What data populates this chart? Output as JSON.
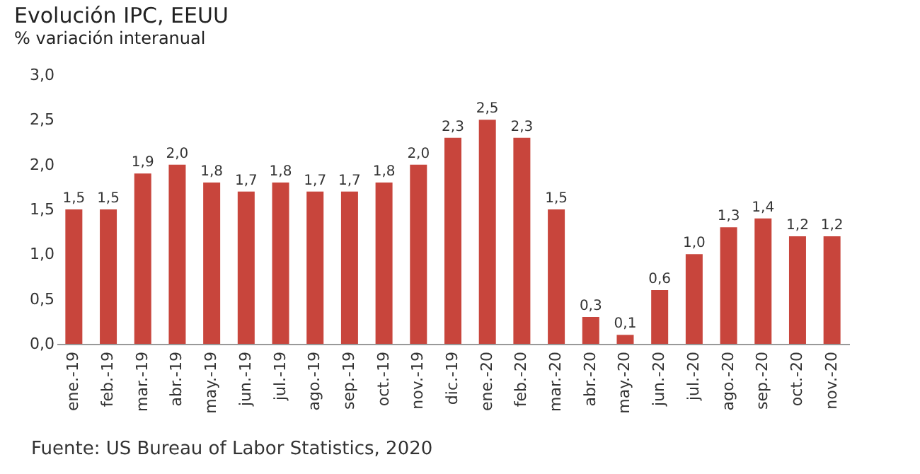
{
  "chart_data": {
    "type": "bar",
    "title": "Evolución IPC, EEUU",
    "subtitle": "% variación interanual",
    "annotations": [
      "Fuente: US Bureau of Labor Statistics, 2020"
    ],
    "categories": [
      "ene.-19",
      "feb.-19",
      "mar.-19",
      "abr.-19",
      "may.-19",
      "jun.-19",
      "jul.-19",
      "ago.-19",
      "sep.-19",
      "oct.-19",
      "nov.-19",
      "dic.-19",
      "ene.-20",
      "feb.-20",
      "mar.-20",
      "abr.-20",
      "may.-20",
      "jun.-20",
      "jul.-20",
      "ago.-20",
      "sep.-20",
      "oct.-20",
      "nov.-20"
    ],
    "values": [
      1.5,
      1.5,
      1.9,
      2.0,
      1.8,
      1.7,
      1.8,
      1.7,
      1.7,
      1.8,
      2.0,
      2.3,
      2.5,
      2.3,
      1.5,
      0.3,
      0.1,
      0.6,
      1.0,
      1.3,
      1.4,
      1.2,
      1.2
    ],
    "value_labels": [
      "1,5",
      "1,5",
      "1,9",
      "2,0",
      "1,8",
      "1,7",
      "1,8",
      "1,7",
      "1,7",
      "1,8",
      "2,0",
      "2,3",
      "2,5",
      "2,3",
      "1,5",
      "0,3",
      "0,1",
      "0,6",
      "1,0",
      "1,3",
      "1,4",
      "1,2",
      "1,2"
    ],
    "color": "#c8453c",
    "ylim": [
      0,
      3
    ],
    "yticks": [
      {
        "value": 0,
        "label": "0,0"
      },
      {
        "value": 0.5,
        "label": "0,5"
      },
      {
        "value": 1,
        "label": "1,0"
      },
      {
        "value": 1.5,
        "label": "1,5"
      },
      {
        "value": 2,
        "label": "2,0"
      },
      {
        "value": 2.5,
        "label": "2,5"
      },
      {
        "value": 3,
        "label": "3,0"
      }
    ],
    "grid": false
  }
}
